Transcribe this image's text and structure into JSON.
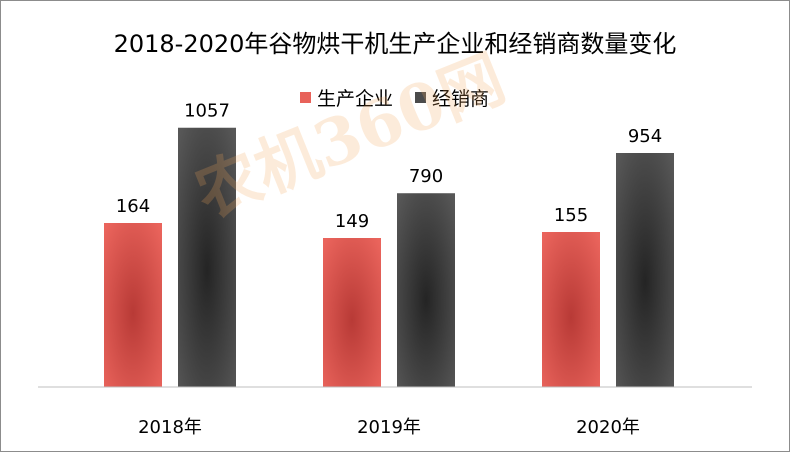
{
  "chart_data": {
    "type": "bar",
    "title": "2018-2020年谷物烘干机生产企业和经销商数量变化",
    "categories": [
      "2018年",
      "2019年",
      "2020年"
    ],
    "series": [
      {
        "name": "生产企业",
        "values": [
          164,
          149,
          155
        ],
        "color": "#e8625a",
        "axis_max": 260
      },
      {
        "name": "经销商",
        "values": [
          1057,
          790,
          954
        ],
        "color": "#4b4b4b",
        "axis_max": 1060
      }
    ],
    "legend_position": "top-center",
    "grid": false,
    "xlabel": "",
    "ylabel": ""
  },
  "watermark": {
    "text": "农机360网"
  }
}
